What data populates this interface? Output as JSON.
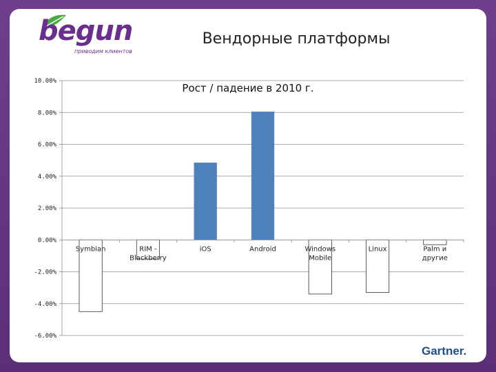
{
  "slide": {
    "title": "Вендорные платформы",
    "logo_word": "begun",
    "logo_tagline": "приводим клиентов",
    "brand": "Gartner."
  },
  "colors": {
    "bar": "#4f81bd",
    "logo": "#6a2f8c",
    "leaf": "#4aa844",
    "brand": "#1e4e8c"
  },
  "chart_data": {
    "type": "bar",
    "title": "Рост / падение в 2010 г.",
    "categories": [
      "Symbian",
      "RIM - Blackberry",
      "iOS",
      "Android",
      "Windows Mobile",
      "Linux",
      "Palm и другие"
    ],
    "category_lines": [
      [
        "Symbian"
      ],
      [
        "RIM -",
        "Blackberry"
      ],
      [
        "iOS"
      ],
      [
        "Android"
      ],
      [
        "Windows",
        "Mobile"
      ],
      [
        "Linux"
      ],
      [
        "Palm и",
        "другие"
      ]
    ],
    "values": [
      -4.5,
      -1.2,
      4.85,
      8.05,
      -3.4,
      -3.3,
      -0.3
    ],
    "ylim": [
      -6,
      10
    ],
    "yticks": [
      -6,
      -4,
      -2,
      0,
      2,
      4,
      6,
      8,
      10
    ],
    "ytick_labels": [
      "-6.00%",
      "-4.00%",
      "-2.00%",
      "0.00%",
      "2.00%",
      "4.00%",
      "6.00%",
      "8.00%",
      "10.00%"
    ],
    "grid": true,
    "legend": "none"
  }
}
